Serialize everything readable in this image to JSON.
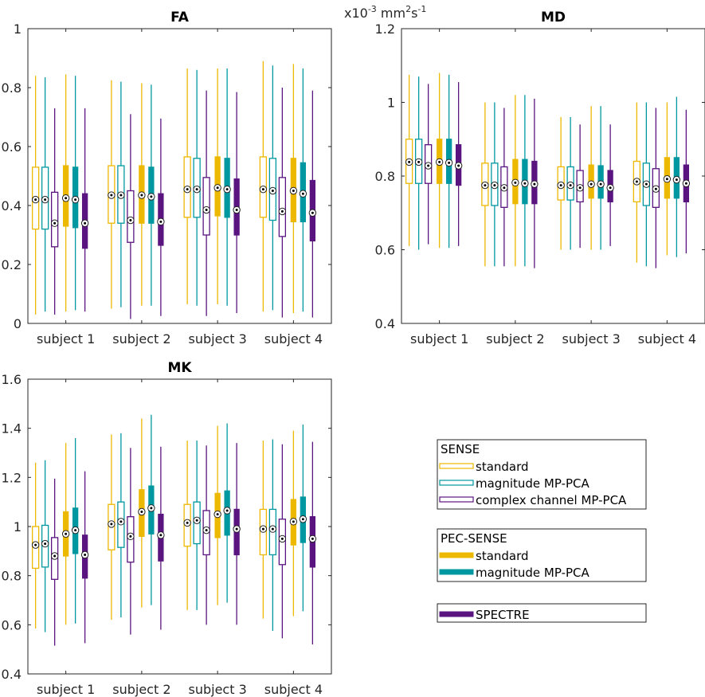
{
  "colors": {
    "standard": "#EDB800",
    "magnitude": "#0098A0",
    "complex": "#5A1480"
  },
  "legend": {
    "sense": {
      "title": "SENSE",
      "items": [
        {
          "label": "standard",
          "key": "standard",
          "style": "hollow"
        },
        {
          "label": "magnitude MP-PCA",
          "key": "magnitude",
          "style": "hollow"
        },
        {
          "label": "complex channel MP-PCA",
          "key": "complex",
          "style": "hollow"
        }
      ]
    },
    "pec": {
      "title": "PEC-SENSE",
      "items": [
        {
          "label": "standard",
          "key": "standard",
          "style": "filled"
        },
        {
          "label": "magnitude MP-PCA",
          "key": "magnitude",
          "style": "filled"
        }
      ]
    },
    "spectre": {
      "items": [
        {
          "label": "SPECTRE",
          "key": "complex",
          "style": "filled"
        }
      ]
    }
  },
  "chart_data": [
    {
      "type": "boxplot",
      "title": "FA",
      "unit_label": "",
      "categories": [
        "subject 1",
        "subject 2",
        "subject 3",
        "subject 4"
      ],
      "ylim": [
        0,
        1
      ],
      "yticks": [
        "0",
        "0.2",
        "0.4",
        "0.6",
        "0.8",
        "1"
      ],
      "ytick_values": [
        0,
        0.2,
        0.4,
        0.6,
        0.8,
        1
      ],
      "series": [
        {
          "name": "SENSE standard",
          "key": "standard",
          "style": "hollow",
          "boxes": [
            {
              "min": 0.03,
              "q1": 0.32,
              "median": 0.42,
              "q3": 0.53,
              "max": 0.84
            },
            {
              "min": 0.05,
              "q1": 0.34,
              "median": 0.435,
              "q3": 0.535,
              "max": 0.825
            },
            {
              "min": 0.065,
              "q1": 0.36,
              "median": 0.455,
              "q3": 0.565,
              "max": 0.865
            },
            {
              "min": 0.04,
              "q1": 0.36,
              "median": 0.455,
              "q3": 0.565,
              "max": 0.89
            }
          ]
        },
        {
          "name": "SENSE magnitude MP-PCA",
          "key": "magnitude",
          "style": "hollow",
          "boxes": [
            {
              "min": 0.04,
              "q1": 0.32,
              "median": 0.42,
              "q3": 0.53,
              "max": 0.835
            },
            {
              "min": 0.055,
              "q1": 0.34,
              "median": 0.435,
              "q3": 0.535,
              "max": 0.82
            },
            {
              "min": 0.06,
              "q1": 0.36,
              "median": 0.455,
              "q3": 0.56,
              "max": 0.86
            },
            {
              "min": 0.045,
              "q1": 0.35,
              "median": 0.45,
              "q3": 0.56,
              "max": 0.875
            }
          ]
        },
        {
          "name": "SENSE complex channel MP-PCA",
          "key": "complex",
          "style": "hollow",
          "boxes": [
            {
              "min": 0.03,
              "q1": 0.26,
              "median": 0.34,
              "q3": 0.445,
              "max": 0.73
            },
            {
              "min": 0.015,
              "q1": 0.275,
              "median": 0.35,
              "q3": 0.45,
              "max": 0.71
            },
            {
              "min": 0.025,
              "q1": 0.3,
              "median": 0.385,
              "q3": 0.495,
              "max": 0.79
            },
            {
              "min": 0.02,
              "q1": 0.295,
              "median": 0.38,
              "q3": 0.495,
              "max": 0.8
            }
          ]
        },
        {
          "name": "PEC-SENSE standard",
          "key": "standard",
          "style": "filled",
          "boxes": [
            {
              "min": 0.04,
              "q1": 0.33,
              "median": 0.425,
              "q3": 0.535,
              "max": 0.845
            },
            {
              "min": 0.06,
              "q1": 0.34,
              "median": 0.435,
              "q3": 0.535,
              "max": 0.815
            },
            {
              "min": 0.065,
              "q1": 0.365,
              "median": 0.46,
              "q3": 0.565,
              "max": 0.865
            },
            {
              "min": 0.035,
              "q1": 0.345,
              "median": 0.45,
              "q3": 0.56,
              "max": 0.88
            }
          ]
        },
        {
          "name": "PEC-SENSE magnitude MP-PCA",
          "key": "magnitude",
          "style": "filled",
          "boxes": [
            {
              "min": 0.045,
              "q1": 0.325,
              "median": 0.42,
              "q3": 0.53,
              "max": 0.84
            },
            {
              "min": 0.06,
              "q1": 0.34,
              "median": 0.43,
              "q3": 0.53,
              "max": 0.81
            },
            {
              "min": 0.06,
              "q1": 0.36,
              "median": 0.455,
              "q3": 0.56,
              "max": 0.865
            },
            {
              "min": 0.04,
              "q1": 0.345,
              "median": 0.44,
              "q3": 0.545,
              "max": 0.865
            }
          ]
        },
        {
          "name": "SPECTRE",
          "key": "complex",
          "style": "filled",
          "boxes": [
            {
              "min": 0.04,
              "q1": 0.255,
              "median": 0.34,
              "q3": 0.44,
              "max": 0.73
            },
            {
              "min": 0.025,
              "q1": 0.265,
              "median": 0.345,
              "q3": 0.44,
              "max": 0.695
            },
            {
              "min": 0.035,
              "q1": 0.3,
              "median": 0.385,
              "q3": 0.49,
              "max": 0.785
            },
            {
              "min": 0.02,
              "q1": 0.28,
              "median": 0.375,
              "q3": 0.485,
              "max": 0.79
            }
          ]
        }
      ]
    },
    {
      "type": "boxplot",
      "title": "MD",
      "unit_label": "x10-3 mm2s-1",
      "categories": [
        "subject 1",
        "subject 2",
        "subject 3",
        "subject 4"
      ],
      "ylim": [
        0.4,
        1.2
      ],
      "yticks": [
        "0.4",
        "0.6",
        "0.8",
        "1",
        "1.2"
      ],
      "ytick_values": [
        0.4,
        0.6,
        0.8,
        1.0,
        1.2
      ],
      "series": [
        {
          "name": "SENSE standard",
          "key": "standard",
          "style": "hollow",
          "boxes": [
            {
              "min": 0.61,
              "q1": 0.78,
              "median": 0.838,
              "q3": 0.9,
              "max": 1.075
            },
            {
              "min": 0.555,
              "q1": 0.72,
              "median": 0.775,
              "q3": 0.835,
              "max": 1.0
            },
            {
              "min": 0.6,
              "q1": 0.735,
              "median": 0.775,
              "q3": 0.825,
              "max": 0.96
            },
            {
              "min": 0.565,
              "q1": 0.73,
              "median": 0.785,
              "q3": 0.84,
              "max": 1.0
            }
          ]
        },
        {
          "name": "SENSE magnitude MP-PCA",
          "key": "magnitude",
          "style": "hollow",
          "boxes": [
            {
              "min": 0.6,
              "q1": 0.78,
              "median": 0.838,
              "q3": 0.9,
              "max": 1.07
            },
            {
              "min": 0.555,
              "q1": 0.72,
              "median": 0.775,
              "q3": 0.835,
              "max": 1.0
            },
            {
              "min": 0.6,
              "q1": 0.735,
              "median": 0.775,
              "q3": 0.825,
              "max": 0.96
            },
            {
              "min": 0.555,
              "q1": 0.72,
              "median": 0.778,
              "q3": 0.835,
              "max": 1.0
            }
          ]
        },
        {
          "name": "SENSE complex channel MP-PCA",
          "key": "complex",
          "style": "hollow",
          "boxes": [
            {
              "min": 0.615,
              "q1": 0.78,
              "median": 0.828,
              "q3": 0.885,
              "max": 1.05
            },
            {
              "min": 0.555,
              "q1": 0.715,
              "median": 0.768,
              "q3": 0.825,
              "max": 0.985
            },
            {
              "min": 0.605,
              "q1": 0.73,
              "median": 0.768,
              "q3": 0.815,
              "max": 0.94
            },
            {
              "min": 0.55,
              "q1": 0.715,
              "median": 0.765,
              "q3": 0.82,
              "max": 0.985
            }
          ]
        },
        {
          "name": "PEC-SENSE standard",
          "key": "standard",
          "style": "filled",
          "boxes": [
            {
              "min": 0.605,
              "q1": 0.78,
              "median": 0.838,
              "q3": 0.9,
              "max": 1.08
            },
            {
              "min": 0.555,
              "q1": 0.725,
              "median": 0.782,
              "q3": 0.845,
              "max": 1.02
            },
            {
              "min": 0.6,
              "q1": 0.74,
              "median": 0.778,
              "q3": 0.83,
              "max": 0.99
            },
            {
              "min": 0.585,
              "q1": 0.74,
              "median": 0.792,
              "q3": 0.85,
              "max": 1.0
            }
          ]
        },
        {
          "name": "PEC-SENSE magnitude MP-PCA",
          "key": "magnitude",
          "style": "filled",
          "boxes": [
            {
              "min": 0.605,
              "q1": 0.78,
              "median": 0.836,
              "q3": 0.9,
              "max": 1.075
            },
            {
              "min": 0.555,
              "q1": 0.725,
              "median": 0.78,
              "q3": 0.845,
              "max": 1.02
            },
            {
              "min": 0.6,
              "q1": 0.74,
              "median": 0.778,
              "q3": 0.828,
              "max": 0.99
            },
            {
              "min": 0.58,
              "q1": 0.74,
              "median": 0.79,
              "q3": 0.85,
              "max": 1.015
            }
          ]
        },
        {
          "name": "SPECTRE",
          "key": "complex",
          "style": "filled",
          "boxes": [
            {
              "min": 0.61,
              "q1": 0.775,
              "median": 0.828,
              "q3": 0.885,
              "max": 1.055
            },
            {
              "min": 0.55,
              "q1": 0.725,
              "median": 0.778,
              "q3": 0.84,
              "max": 1.01
            },
            {
              "min": 0.61,
              "q1": 0.73,
              "median": 0.768,
              "q3": 0.815,
              "max": 0.94
            },
            {
              "min": 0.59,
              "q1": 0.73,
              "median": 0.78,
              "q3": 0.83,
              "max": 0.98
            }
          ]
        }
      ]
    },
    {
      "type": "boxplot",
      "title": "MK",
      "unit_label": "",
      "categories": [
        "subject 1",
        "subject 2",
        "subject 3",
        "subject 4"
      ],
      "ylim": [
        0.4,
        1.6
      ],
      "yticks": [
        "0.4",
        "0.6",
        "0.8",
        "1",
        "1.2",
        "1.4",
        "1.6"
      ],
      "ytick_values": [
        0.4,
        0.6,
        0.8,
        1.0,
        1.2,
        1.4,
        1.6
      ],
      "series": [
        {
          "name": "SENSE standard",
          "key": "standard",
          "style": "hollow",
          "boxes": [
            {
              "min": 0.585,
              "q1": 0.83,
              "median": 0.925,
              "q3": 1.0,
              "max": 1.26
            },
            {
              "min": 0.62,
              "q1": 0.905,
              "median": 1.01,
              "q3": 1.09,
              "max": 1.375
            },
            {
              "min": 0.66,
              "q1": 0.92,
              "median": 1.015,
              "q3": 1.09,
              "max": 1.35
            },
            {
              "min": 0.625,
              "q1": 0.885,
              "median": 0.99,
              "q3": 1.07,
              "max": 1.35
            }
          ]
        },
        {
          "name": "SENSE magnitude MP-PCA",
          "key": "magnitude",
          "style": "hollow",
          "boxes": [
            {
              "min": 0.57,
              "q1": 0.835,
              "median": 0.93,
              "q3": 1.005,
              "max": 1.27
            },
            {
              "min": 0.63,
              "q1": 0.915,
              "median": 1.02,
              "q3": 1.1,
              "max": 1.38
            },
            {
              "min": 0.66,
              "q1": 0.93,
              "median": 1.025,
              "q3": 1.1,
              "max": 1.35
            },
            {
              "min": 0.575,
              "q1": 0.885,
              "median": 0.99,
              "q3": 1.07,
              "max": 1.355
            }
          ]
        },
        {
          "name": "SENSE complex channel MP-PCA",
          "key": "complex",
          "style": "hollow",
          "boxes": [
            {
              "min": 0.515,
              "q1": 0.785,
              "median": 0.88,
              "q3": 0.955,
              "max": 1.195
            },
            {
              "min": 0.56,
              "q1": 0.855,
              "median": 0.96,
              "q3": 1.04,
              "max": 1.32
            },
            {
              "min": 0.6,
              "q1": 0.885,
              "median": 0.985,
              "q3": 1.065,
              "max": 1.33
            },
            {
              "min": 0.545,
              "q1": 0.845,
              "median": 0.95,
              "q3": 1.03,
              "max": 1.335
            }
          ]
        },
        {
          "name": "PEC-SENSE standard",
          "key": "standard",
          "style": "filled",
          "boxes": [
            {
              "min": 0.6,
              "q1": 0.88,
              "median": 0.97,
              "q3": 1.06,
              "max": 1.34
            },
            {
              "min": 0.67,
              "q1": 0.96,
              "median": 1.06,
              "q3": 1.15,
              "max": 1.44
            },
            {
              "min": 0.68,
              "q1": 0.955,
              "median": 1.05,
              "q3": 1.135,
              "max": 1.41
            },
            {
              "min": 0.635,
              "q1": 0.925,
              "median": 1.02,
              "q3": 1.11,
              "max": 1.39
            }
          ]
        },
        {
          "name": "PEC-SENSE magnitude MP-PCA",
          "key": "magnitude",
          "style": "filled",
          "boxes": [
            {
              "min": 0.605,
              "q1": 0.89,
              "median": 0.985,
              "q3": 1.075,
              "max": 1.36
            },
            {
              "min": 0.68,
              "q1": 0.97,
              "median": 1.075,
              "q3": 1.165,
              "max": 1.455
            },
            {
              "min": 0.69,
              "q1": 0.965,
              "median": 1.065,
              "q3": 1.145,
              "max": 1.42
            },
            {
              "min": 0.655,
              "q1": 0.935,
              "median": 1.03,
              "q3": 1.12,
              "max": 1.415
            }
          ]
        },
        {
          "name": "SPECTRE",
          "key": "complex",
          "style": "filled",
          "boxes": [
            {
              "min": 0.525,
              "q1": 0.79,
              "median": 0.885,
              "q3": 0.965,
              "max": 1.225
            },
            {
              "min": 0.58,
              "q1": 0.86,
              "median": 0.965,
              "q3": 1.05,
              "max": 1.325
            },
            {
              "min": 0.6,
              "q1": 0.885,
              "median": 0.99,
              "q3": 1.07,
              "max": 1.34
            },
            {
              "min": 0.52,
              "q1": 0.835,
              "median": 0.95,
              "q3": 1.04,
              "max": 1.345
            }
          ]
        }
      ]
    }
  ]
}
